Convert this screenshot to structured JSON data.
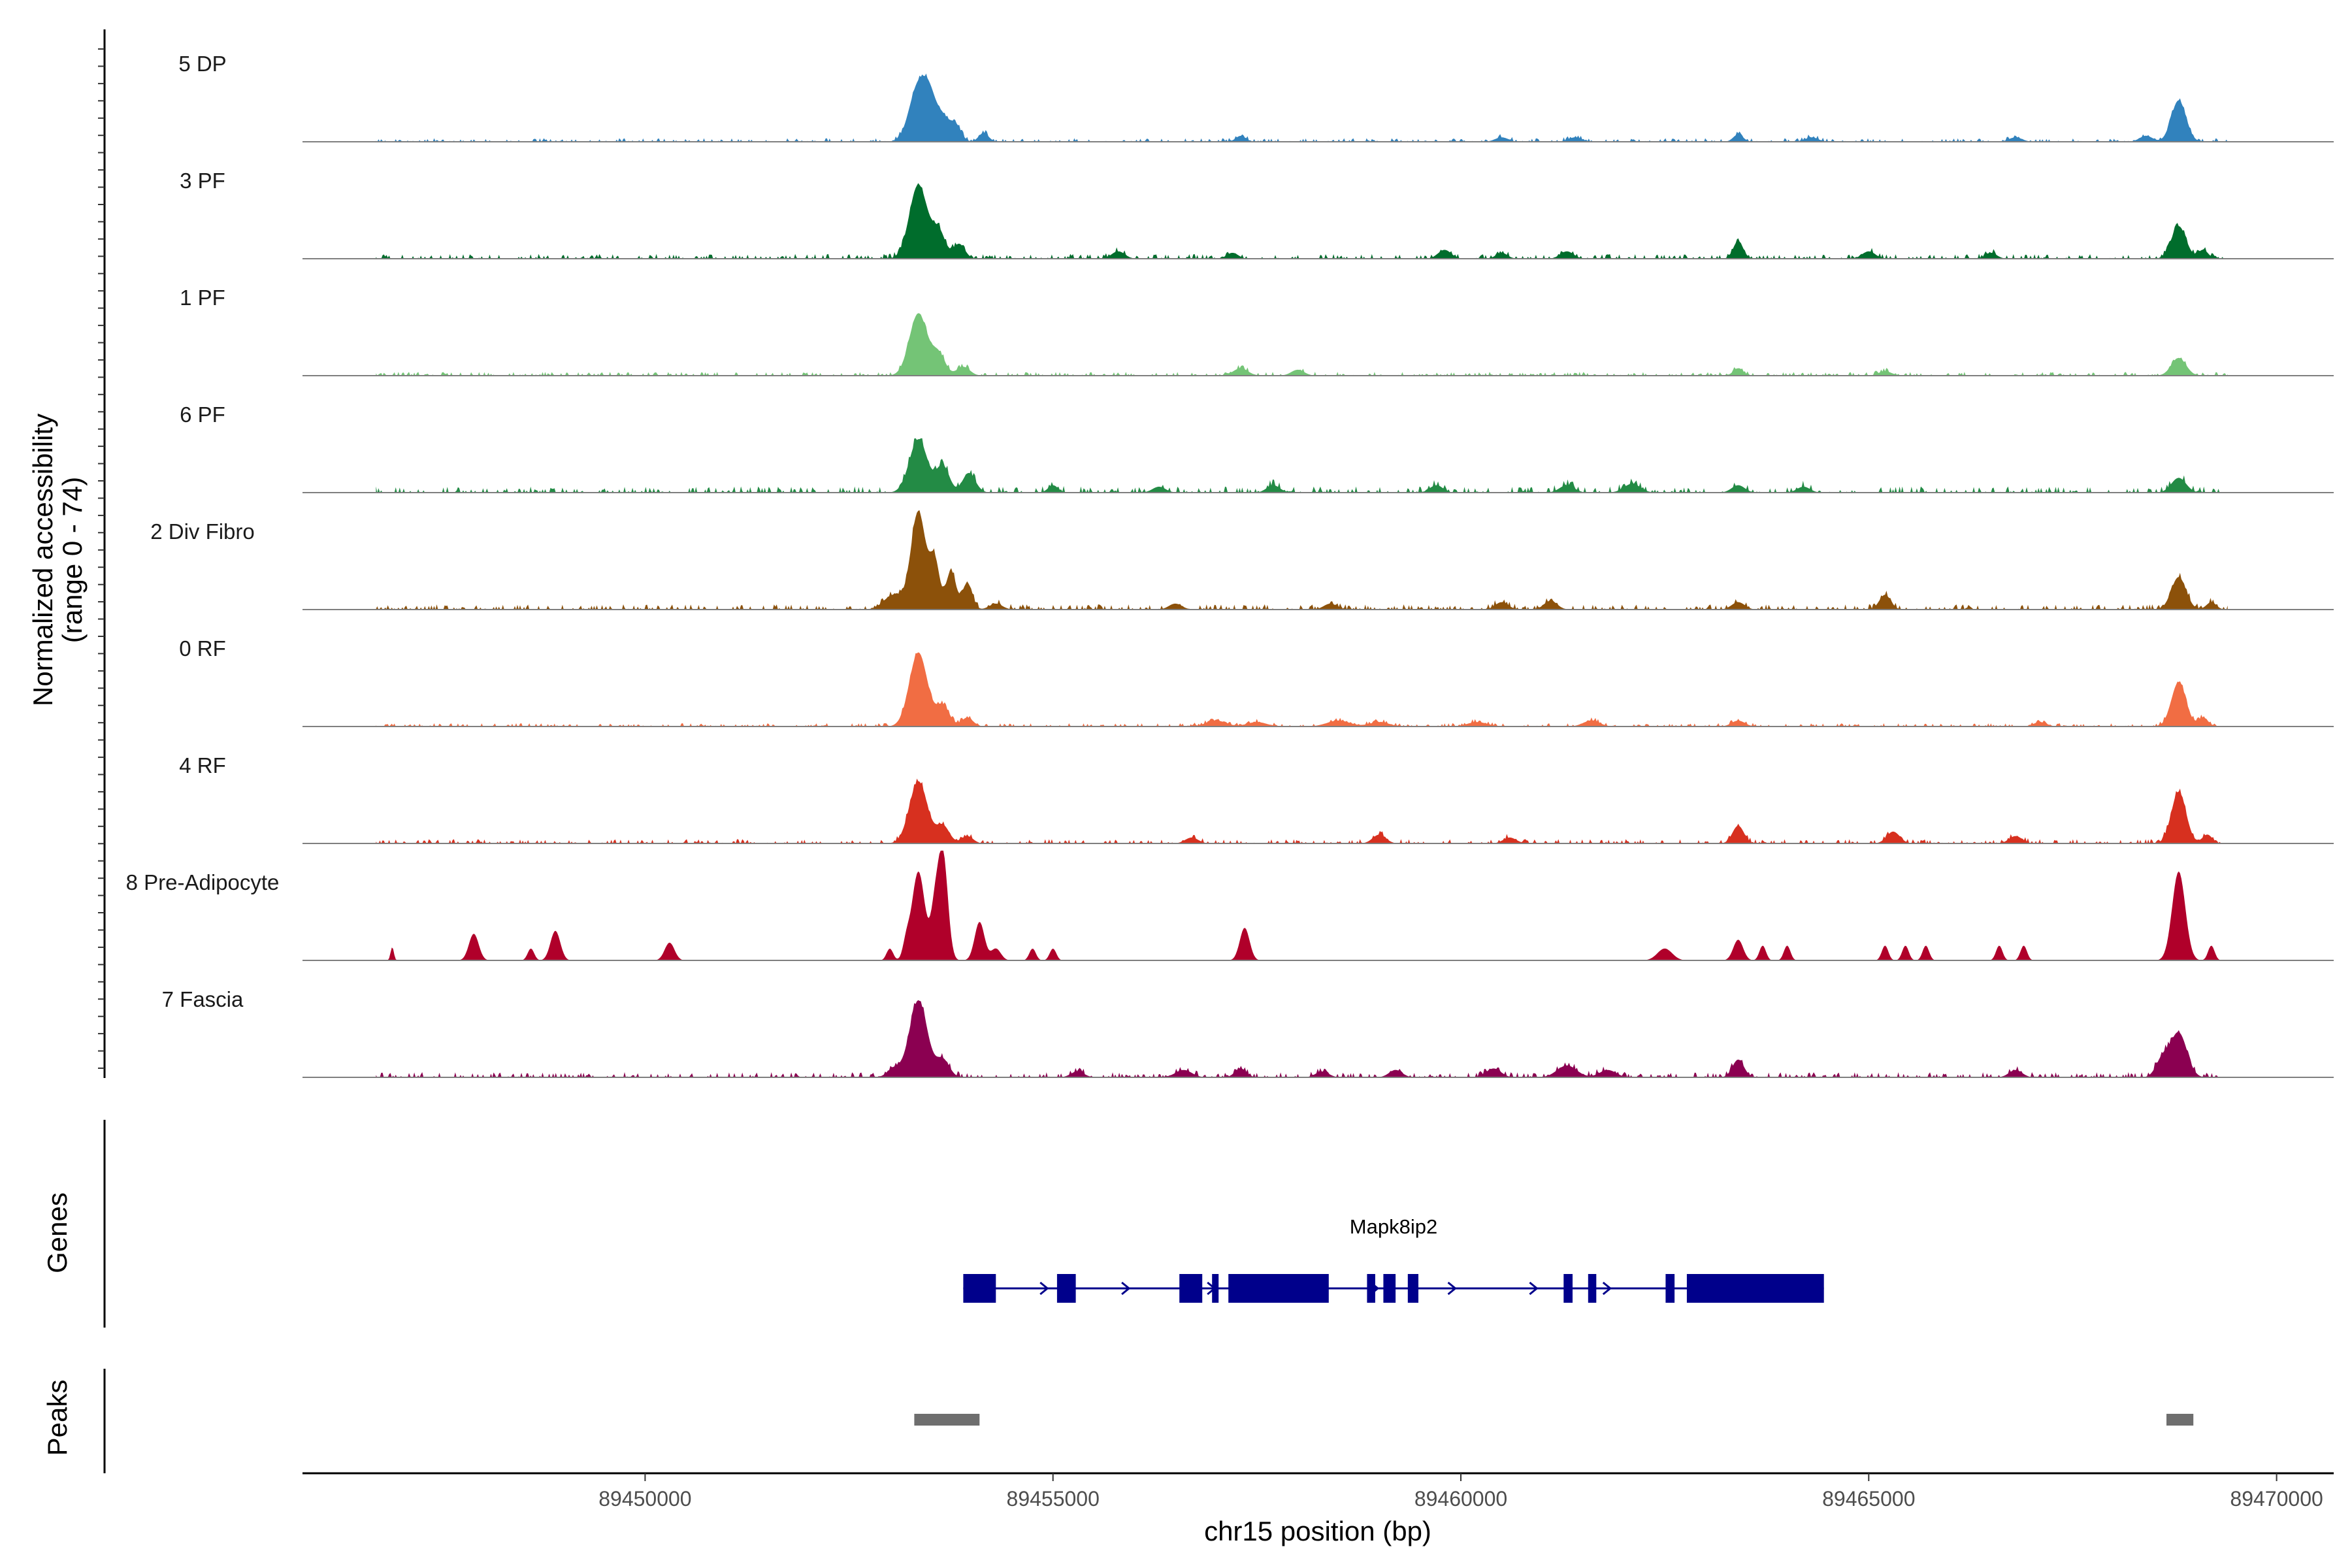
{
  "chart_data": {
    "type": "area",
    "title": "",
    "xlabel": "chr15 position (bp)",
    "ylabel": "Normalized accessibility",
    "ylabel_range": "(range 0 - 74)",
    "xlim": [
      89445800,
      89470700
    ],
    "x_ticks": [
      89450000,
      89455000,
      89460000,
      89465000,
      89470000
    ],
    "x_tick_labels": [
      "89450000",
      "89455000",
      "89460000",
      "89465000",
      "89470000"
    ],
    "ylim": [
      0,
      74
    ],
    "tracks": [
      {
        "name": "5 DP",
        "color": "#3182bd",
        "peaks": [
          [
            89453350,
            38,
            110
          ],
          [
            89453500,
            22,
            80
          ],
          [
            89453650,
            14,
            70
          ],
          [
            89453800,
            12,
            70
          ],
          [
            89454150,
            6,
            60
          ],
          [
            89457300,
            4,
            60
          ],
          [
            89460500,
            3,
            80
          ],
          [
            89461400,
            3,
            80
          ],
          [
            89463400,
            5,
            60
          ],
          [
            89464300,
            3,
            80
          ],
          [
            89466800,
            3,
            80
          ],
          [
            89468400,
            4,
            80
          ],
          [
            89468800,
            28,
            90
          ]
        ],
        "noise": 1.5,
        "seed": 11
      },
      {
        "name": "3 PF",
        "color": "#006d2c",
        "peaks": [
          [
            89453350,
            50,
            110
          ],
          [
            89453600,
            18,
            80
          ],
          [
            89453850,
            10,
            70
          ],
          [
            89455800,
            5,
            80
          ],
          [
            89457200,
            4,
            70
          ],
          [
            89459800,
            6,
            80
          ],
          [
            89460500,
            4,
            70
          ],
          [
            89461300,
            5,
            80
          ],
          [
            89463400,
            12,
            60
          ],
          [
            89465000,
            5,
            80
          ],
          [
            89466500,
            4,
            70
          ],
          [
            89468800,
            22,
            90
          ],
          [
            89469100,
            6,
            60
          ]
        ],
        "noise": 2.0,
        "seed": 23
      },
      {
        "name": "1 PF",
        "color": "#74c476",
        "peaks": [
          [
            89453350,
            42,
            110
          ],
          [
            89453600,
            14,
            80
          ],
          [
            89453900,
            6,
            80
          ],
          [
            89457300,
            5,
            90
          ],
          [
            89458000,
            4,
            80
          ],
          [
            89463400,
            5,
            60
          ],
          [
            89465200,
            3,
            80
          ],
          [
            89468800,
            12,
            90
          ]
        ],
        "noise": 1.6,
        "seed": 37
      },
      {
        "name": "6 PF",
        "color": "#238b45",
        "peaks": [
          [
            89453350,
            36,
            110
          ],
          [
            89453650,
            18,
            80
          ],
          [
            89453950,
            8,
            70
          ],
          [
            89454000,
            6,
            80
          ],
          [
            89455000,
            5,
            60
          ],
          [
            89456300,
            4,
            80
          ],
          [
            89457700,
            5,
            80
          ],
          [
            89459700,
            5,
            80
          ],
          [
            89461300,
            5,
            90
          ],
          [
            89462100,
            6,
            100
          ],
          [
            89463400,
            5,
            80
          ],
          [
            89464200,
            4,
            80
          ],
          [
            89468800,
            10,
            90
          ]
        ],
        "noise": 2.6,
        "seed": 41
      },
      {
        "name": "2 Div Fibro",
        "color": "#8c510a",
        "peaks": [
          [
            89453350,
            66,
            90
          ],
          [
            89453550,
            32,
            60
          ],
          [
            89453750,
            26,
            60
          ],
          [
            89453950,
            18,
            60
          ],
          [
            89453050,
            10,
            120
          ],
          [
            89454300,
            4,
            80
          ],
          [
            89456500,
            4,
            80
          ],
          [
            89458400,
            4,
            80
          ],
          [
            89460500,
            5,
            80
          ],
          [
            89461100,
            6,
            80
          ],
          [
            89463400,
            5,
            80
          ],
          [
            89465200,
            10,
            70
          ],
          [
            89468800,
            22,
            90
          ],
          [
            89469200,
            5,
            60
          ]
        ],
        "noise": 2.2,
        "seed": 53
      },
      {
        "name": "0 RF",
        "color": "#f16d43",
        "peaks": [
          [
            89453350,
            50,
            110
          ],
          [
            89453650,
            14,
            80
          ],
          [
            89453950,
            6,
            70
          ],
          [
            89457000,
            4,
            120
          ],
          [
            89457500,
            3,
            120
          ],
          [
            89458500,
            4,
            140
          ],
          [
            89459000,
            3,
            120
          ],
          [
            89460200,
            3,
            120
          ],
          [
            89461600,
            4,
            100
          ],
          [
            89463400,
            4,
            80
          ],
          [
            89467100,
            3,
            80
          ],
          [
            89468800,
            30,
            90
          ],
          [
            89469100,
            6,
            60
          ]
        ],
        "noise": 1.4,
        "seed": 67
      },
      {
        "name": "4 RF",
        "color": "#d7301f",
        "peaks": [
          [
            89453350,
            42,
            110
          ],
          [
            89453650,
            12,
            80
          ],
          [
            89453950,
            5,
            70
          ],
          [
            89456700,
            4,
            80
          ],
          [
            89459000,
            6,
            80
          ],
          [
            89460600,
            4,
            80
          ],
          [
            89463400,
            12,
            70
          ],
          [
            89465300,
            8,
            80
          ],
          [
            89466800,
            5,
            80
          ],
          [
            89468800,
            35,
            90
          ],
          [
            89469150,
            6,
            60
          ]
        ],
        "noise": 1.8,
        "seed": 79
      },
      {
        "name": "8 Pre-Adipocyte",
        "color": "#b0002a",
        "peaks": [
          [
            89446900,
            9,
            20
          ],
          [
            89447900,
            18,
            60
          ],
          [
            89448600,
            8,
            40
          ],
          [
            89448900,
            20,
            60
          ],
          [
            89450300,
            12,
            60
          ],
          [
            89453000,
            8,
            40
          ],
          [
            89453200,
            10,
            40
          ],
          [
            89453350,
            60,
            80
          ],
          [
            89453550,
            30,
            50
          ],
          [
            89453650,
            72,
            60
          ],
          [
            89454100,
            26,
            60
          ],
          [
            89454300,
            8,
            60
          ],
          [
            89454750,
            8,
            40
          ],
          [
            89455000,
            8,
            40
          ],
          [
            89457350,
            22,
            60
          ],
          [
            89462500,
            8,
            90
          ],
          [
            89463400,
            14,
            60
          ],
          [
            89463700,
            10,
            40
          ],
          [
            89464000,
            10,
            40
          ],
          [
            89465200,
            10,
            40
          ],
          [
            89465450,
            10,
            40
          ],
          [
            89465700,
            10,
            40
          ],
          [
            89466600,
            10,
            40
          ],
          [
            89466900,
            10,
            40
          ],
          [
            89468800,
            60,
            80
          ],
          [
            89469200,
            10,
            40
          ]
        ],
        "noise": 0,
        "seed": 91
      },
      {
        "name": "7 Fascia",
        "color": "#8b0051",
        "peaks": [
          [
            89453350,
            52,
            110
          ],
          [
            89453650,
            12,
            80
          ],
          [
            89453050,
            6,
            80
          ],
          [
            89455300,
            4,
            80
          ],
          [
            89456600,
            5,
            100
          ],
          [
            89457300,
            6,
            70
          ],
          [
            89458300,
            4,
            80
          ],
          [
            89459200,
            5,
            80
          ],
          [
            89460400,
            6,
            90
          ],
          [
            89461300,
            8,
            120
          ],
          [
            89461800,
            5,
            100
          ],
          [
            89463400,
            12,
            70
          ],
          [
            89466800,
            5,
            80
          ],
          [
            89468800,
            30,
            100
          ],
          [
            89468600,
            12,
            80
          ]
        ],
        "noise": 2.2,
        "seed": 101
      }
    ],
    "genes": {
      "label": "Genes",
      "gene_name": "Mapk8ip2",
      "color": "#00008b",
      "start": 89453900,
      "end": 89464450,
      "strand": "+",
      "exons": [
        [
          89453900,
          89454300
        ],
        [
          89455050,
          89455280
        ],
        [
          89456550,
          89456830
        ],
        [
          89456950,
          89457030
        ],
        [
          89457150,
          89458380
        ],
        [
          89458850,
          89458950
        ],
        [
          89459050,
          89459200
        ],
        [
          89459350,
          89459480
        ],
        [
          89461260,
          89461370
        ],
        [
          89461560,
          89461660
        ],
        [
          89462510,
          89462620
        ],
        [
          89462770,
          89464450
        ]
      ],
      "arrows": [
        89454000,
        89454900,
        89455900,
        89456950,
        89458950,
        89459900,
        89460900,
        89461800
      ]
    },
    "peaks_track": {
      "label": "Peaks",
      "color": "#6e6e6e",
      "regions": [
        [
          89453300,
          89454100
        ],
        [
          89468650,
          89468980
        ]
      ]
    }
  }
}
